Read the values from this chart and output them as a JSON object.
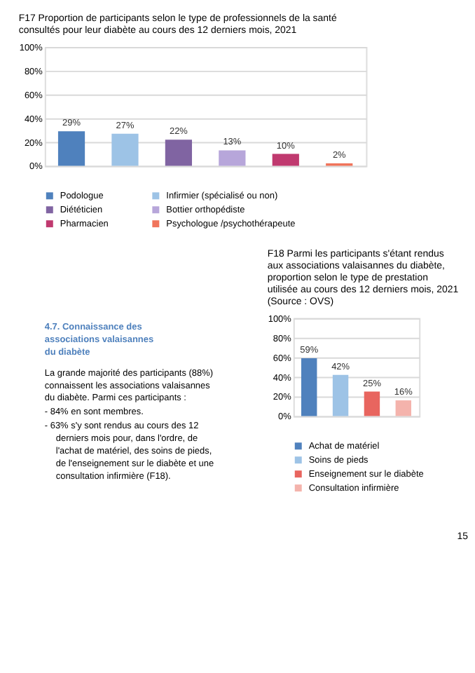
{
  "chart_data": [
    {
      "type": "bar",
      "title": "F17 Proportion de participants selon le type de professionnels de la santé consultés pour leur diabète au cours des 12 derniers mois, 2021",
      "categories": [
        null
      ],
      "series": [
        {
          "name": "Podologue",
          "color": "#4f81bd",
          "values": [
            29
          ],
          "value_labels": [
            "29%"
          ]
        },
        {
          "name": "Infirmier (spécialisé ou non)",
          "color": "#9dc3e6",
          "values": [
            27
          ],
          "value_labels": [
            "27%"
          ]
        },
        {
          "name": "Diététicien",
          "color": "#8064a2",
          "values": [
            22
          ],
          "value_labels": [
            "22%"
          ]
        },
        {
          "name": "Bottier orthopédiste",
          "color": "#b7a6da",
          "values": [
            13
          ],
          "value_labels": [
            "13%"
          ]
        },
        {
          "name": "Pharmacien",
          "color": "#c0396f",
          "values": [
            10
          ],
          "value_labels": [
            "10%"
          ]
        },
        {
          "name": "Psychologue /psychothérapeute",
          "color": "#f0745b",
          "values": [
            2
          ],
          "value_labels": [
            "2%"
          ]
        }
      ],
      "ylim": [
        0,
        100
      ],
      "yticks": [
        {
          "value": 0,
          "label": "0%"
        },
        {
          "value": 20,
          "label": "20%"
        },
        {
          "value": 40,
          "label": "40%"
        },
        {
          "value": 60,
          "label": "60%"
        },
        {
          "value": 80,
          "label": "80%"
        },
        {
          "value": 100,
          "label": "100%"
        }
      ],
      "grid": "y",
      "legend": "bottom",
      "tick_labels": "y"
    },
    {
      "type": "bar",
      "title": "F18 Parmi les participants s'étant rendus aux associations valaisannes du diabète, proportion selon le type de prestation utilisée au cours des 12 derniers mois, 2021 (Source : OVS)",
      "categories": [
        null
      ],
      "series": [
        {
          "name": "Achat de matériel",
          "color": "#4f81bd",
          "values": [
            59
          ],
          "value_labels": [
            "59%"
          ]
        },
        {
          "name": "Soins de pieds",
          "color": "#9dc3e6",
          "values": [
            42
          ],
          "value_labels": [
            "42%"
          ]
        },
        {
          "name": "Enseignement sur le diabète",
          "color": "#e8655f",
          "values": [
            25
          ],
          "value_labels": [
            "25%"
          ]
        },
        {
          "name": "Consultation infirmière",
          "color": "#f4b3ac",
          "values": [
            16
          ],
          "value_labels": [
            "16%"
          ]
        }
      ],
      "ylim": [
        0,
        100
      ],
      "yticks": [
        {
          "value": 0,
          "label": "0%"
        },
        {
          "value": 20,
          "label": "20%"
        },
        {
          "value": 40,
          "label": "40%"
        },
        {
          "value": 60,
          "label": "60%"
        },
        {
          "value": 80,
          "label": "80%"
        },
        {
          "value": 100,
          "label": "100%"
        }
      ],
      "grid": "y",
      "legend": "bottom",
      "tick_labels": "y",
      "annotations": [
        "4.7. Connaissance des associations valaisannes du diabète",
        "La grande majorité des participants (88%) connaissent les associations valaisannes du diabète. Parmi ces participants :",
        "- 84% en sont membres.",
        "- 63% s'y sont rendus au cours des 12 derniers mois pour, dans l'ordre, de l'achat de matériel, des soins de pieds, de l'enseignement sur le diabète et une consultation infirmière (F18).",
        "15"
      ]
    }
  ]
}
